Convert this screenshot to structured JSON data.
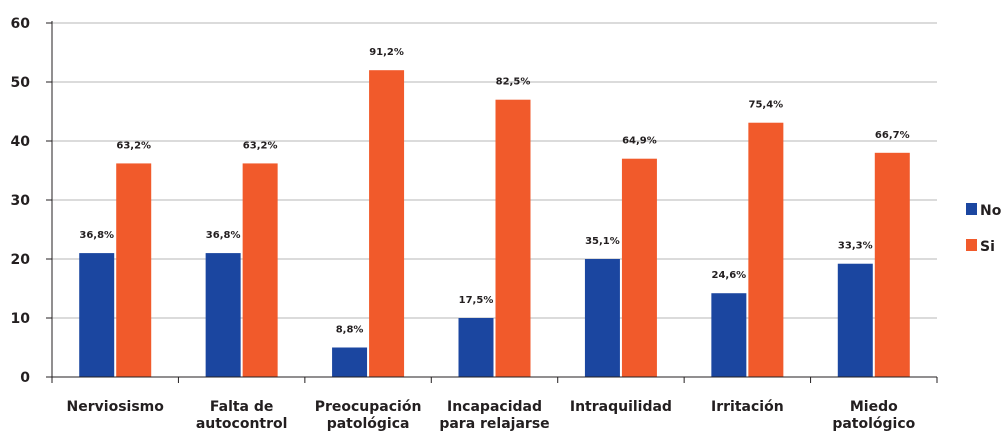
{
  "chart_data": {
    "type": "bar",
    "categories": [
      [
        "Nerviosismo"
      ],
      [
        "Falta de",
        "autocontrol"
      ],
      [
        "Preocupación",
        "patológica"
      ],
      [
        "Incapacidad",
        "para relajarse"
      ],
      [
        "Intraquilidad"
      ],
      [
        "Irritación"
      ],
      [
        "Miedo",
        "patológico"
      ]
    ],
    "series": [
      {
        "name": "No",
        "color": "#1b46a0",
        "values": [
          21,
          21,
          5,
          10,
          20,
          14.2,
          19.2
        ],
        "labels": [
          "36,8%",
          "36,8%",
          "8,8%",
          "17,5%",
          "35,1%",
          "24,6%",
          "33,3%"
        ]
      },
      {
        "name": "Si",
        "color": "#f15a2b",
        "values": [
          36.2,
          36.2,
          52,
          47,
          37,
          43.1,
          38
        ],
        "labels": [
          "63,2%",
          "63,2%",
          "91,2%",
          "82,5%",
          "64,9%",
          "75,4%",
          "66,7%"
        ]
      }
    ],
    "ylim": [
      0,
      60
    ],
    "yticks": [
      "0",
      "10",
      "20",
      "30",
      "40",
      "50",
      "60"
    ],
    "grid": true,
    "legend": "right"
  }
}
